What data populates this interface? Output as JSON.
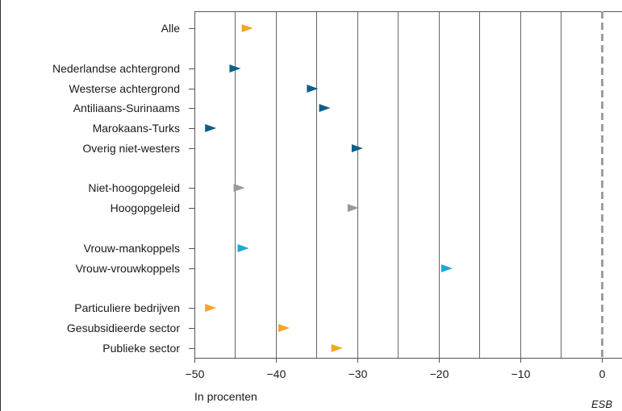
{
  "chart_data": {
    "type": "scatter",
    "xlabel": "In procenten",
    "xlim": [
      -50,
      2.5
    ],
    "xticks": [
      -50,
      -40,
      -30,
      -20,
      -10,
      0
    ],
    "xtick_labels": [
      "−50",
      "−40",
      "−30",
      "−20",
      "−10",
      "0"
    ],
    "grid": true,
    "reference_line": {
      "x": 0,
      "style": "dashed",
      "color": "#9e9e9e"
    },
    "marker": "right-pointing-triangle",
    "colors": {
      "orange": "#f5a623",
      "dark_blue": "#0e5f8a",
      "gray": "#9a9a9a",
      "light_blue": "#1aa8dc"
    },
    "points": [
      {
        "label": "Alle",
        "value": -43.5,
        "color": "#f5a623",
        "group": 0
      },
      {
        "label": "Nederlandse achtergrond",
        "value": -45,
        "color": "#0e5f8a",
        "group": 1
      },
      {
        "label": "Westerse achtergrond",
        "value": -35.5,
        "color": "#0e5f8a",
        "group": 1
      },
      {
        "label": "Antiliaans-Surinaams",
        "value": -34,
        "color": "#0e5f8a",
        "group": 1
      },
      {
        "label": "Marokaans-Turks",
        "value": -48,
        "color": "#0e5f8a",
        "group": 1
      },
      {
        "label": "Overig niet-westers",
        "value": -30,
        "color": "#0e5f8a",
        "group": 1
      },
      {
        "label": "Niet-hoogopgeleid",
        "value": -44.5,
        "color": "#9a9a9a",
        "group": 2
      },
      {
        "label": "Hoogopgeleid",
        "value": -30.5,
        "color": "#9a9a9a",
        "group": 2
      },
      {
        "label": "Vrouw-mankoppels",
        "value": -44,
        "color": "#1aa8dc",
        "group": 3
      },
      {
        "label": "Vrouw-vrouwkoppels",
        "value": -19,
        "color": "#1aa8dc",
        "group": 3
      },
      {
        "label": "Particuliere bedrijven",
        "value": -48,
        "color": "#f5a623",
        "group": 4
      },
      {
        "label": "Gesubsidieerde sector",
        "value": -39,
        "color": "#f5a623",
        "group": 4
      },
      {
        "label": "Publieke sector",
        "value": -32.5,
        "color": "#f5a623",
        "group": 4
      }
    ]
  },
  "source_label": "ESB"
}
